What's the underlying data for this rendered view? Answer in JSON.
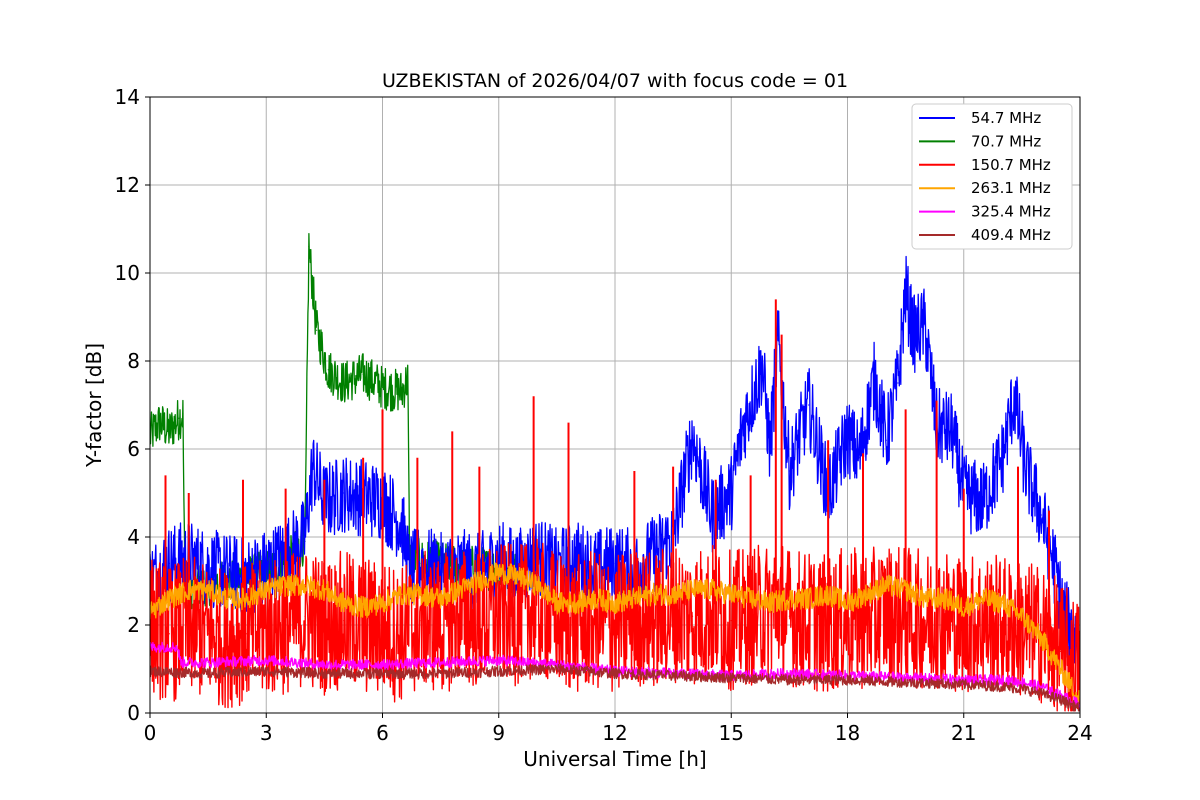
{
  "chart_data": {
    "type": "line",
    "title": "UZBEKISTAN of 2026/04/07 with focus code = 01",
    "xlabel": "Universal Time [h]",
    "ylabel": "Y-factor [dB]",
    "xlim": [
      0,
      24
    ],
    "ylim": [
      0,
      14
    ],
    "xticks": [
      0,
      3,
      6,
      9,
      12,
      15,
      18,
      21,
      24
    ],
    "yticks": [
      0,
      2,
      4,
      6,
      8,
      10,
      12,
      14
    ],
    "grid": true,
    "legend_position": "top-right",
    "series": [
      {
        "name": " 54.7 MHz",
        "color": "#0000ff",
        "x": [
          0,
          0.5,
          1,
          1.5,
          2,
          2.5,
          3,
          3.5,
          4,
          4.2,
          4.5,
          5,
          5.5,
          6,
          6.5,
          6.7,
          7,
          7.5,
          8,
          8.5,
          9,
          9.5,
          10,
          10.5,
          11,
          11.5,
          12,
          12.5,
          13,
          13.5,
          14,
          14.5,
          15,
          15.3,
          15.8,
          16,
          16.2,
          16.5,
          17,
          17.5,
          18,
          18.3,
          18.7,
          19,
          19.3,
          19.5,
          19.7,
          20,
          20.3,
          20.7,
          21,
          21.5,
          22,
          22.3,
          22.6,
          23,
          23.3,
          23.6,
          24
        ],
        "values": [
          3.0,
          3.4,
          3.5,
          3.3,
          3.2,
          3.1,
          3.3,
          3.6,
          4.0,
          5.6,
          4.8,
          5.0,
          4.9,
          4.8,
          4.3,
          3.2,
          3.4,
          3.2,
          3.3,
          3.2,
          3.5,
          3.3,
          3.6,
          3.3,
          3.5,
          3.3,
          3.4,
          3.3,
          3.6,
          4.0,
          6.3,
          4.5,
          5.0,
          6.5,
          7.9,
          6.0,
          8.5,
          5.5,
          7.0,
          5.0,
          6.3,
          5.8,
          7.6,
          6.2,
          7.5,
          9.6,
          8.6,
          8.8,
          6.5,
          6.4,
          5.0,
          4.8,
          5.8,
          7.2,
          5.5,
          4.5,
          3.5,
          2.2,
          1.5
        ]
      },
      {
        "name": " 70.7 MHz",
        "color": "#008000",
        "x": [
          0,
          0.25,
          0.5,
          0.75,
          0.85,
          0.9,
          1.2,
          2,
          3,
          3.5,
          4.0,
          4.1,
          4.3,
          4.6,
          5.0,
          5.5,
          6.0,
          6.5,
          6.65,
          6.7,
          7.5,
          8.5,
          9.5
        ],
        "values": [
          6.3,
          6.6,
          6.4,
          6.7,
          6.8,
          2.8,
          2.9,
          3.0,
          3.2,
          3.4,
          3.9,
          10.6,
          8.7,
          7.8,
          7.5,
          7.7,
          7.4,
          7.3,
          7.6,
          3.5,
          3.4,
          3.3,
          3.2
        ]
      },
      {
        "name": "150.7 MHz",
        "color": "#ff0000",
        "x": [
          0,
          0.5,
          1,
          1.5,
          2,
          2.5,
          3,
          3.5,
          4,
          4.5,
          5,
          5.5,
          6,
          6.5,
          7,
          7.5,
          8,
          8.5,
          9,
          9.5,
          9.9,
          10.5,
          11,
          11.5,
          12,
          12.5,
          13,
          13.5,
          14,
          14.5,
          15,
          15.5,
          16,
          16.15,
          16.5,
          17,
          17.5,
          18,
          18.5,
          19,
          19.5,
          20,
          20.5,
          21,
          21.5,
          22,
          22.5,
          23,
          23.5,
          24
        ],
        "values": [
          2.0,
          1.8,
          2.0,
          1.8,
          1.7,
          1.8,
          1.9,
          2.0,
          2.2,
          2.0,
          2.1,
          2.0,
          1.9,
          1.8,
          2.1,
          2.0,
          2.2,
          2.1,
          2.3,
          2.2,
          2.4,
          2.1,
          2.0,
          2.1,
          2.0,
          2.2,
          2.1,
          2.3,
          2.2,
          2.3,
          2.1,
          2.2,
          2.3,
          2.6,
          2.2,
          2.1,
          2.0,
          2.2,
          2.1,
          2.3,
          2.2,
          2.1,
          2.2,
          2.0,
          2.1,
          2.0,
          1.9,
          1.8,
          1.4,
          1.0
        ],
        "peaks": [
          [
            0.4,
            5.4
          ],
          [
            1.0,
            5.0
          ],
          [
            2.4,
            5.3
          ],
          [
            3.5,
            5.1
          ],
          [
            4.5,
            5.3
          ],
          [
            5.5,
            5.8
          ],
          [
            6.0,
            6.9
          ],
          [
            6.9,
            5.8
          ],
          [
            7.8,
            6.4
          ],
          [
            8.5,
            5.6
          ],
          [
            9.9,
            7.2
          ],
          [
            10.8,
            6.6
          ],
          [
            12.5,
            5.5
          ],
          [
            13.5,
            5.6
          ],
          [
            14.6,
            5.3
          ],
          [
            15.5,
            5.4
          ],
          [
            16.15,
            9.4
          ],
          [
            16.3,
            8.6
          ],
          [
            17.5,
            6.2
          ],
          [
            18.4,
            5.9
          ],
          [
            19.5,
            6.9
          ],
          [
            20.3,
            7.1
          ],
          [
            21.0,
            5.1
          ],
          [
            22.4,
            5.6
          ],
          [
            23.2,
            4.6
          ]
        ]
      },
      {
        "name": "263.1 MHz",
        "color": "#ffa500",
        "x": [
          0,
          0.5,
          1,
          1.5,
          2,
          2.5,
          3,
          3.5,
          4,
          4.5,
          5,
          5.5,
          6,
          6.5,
          7,
          7.5,
          8,
          8.5,
          9,
          9.5,
          10,
          10.5,
          11,
          11.5,
          12,
          12.5,
          13,
          13.5,
          14,
          14.5,
          15,
          15.5,
          16,
          16.5,
          17,
          17.5,
          18,
          18.5,
          19,
          19.5,
          20,
          20.5,
          21,
          21.5,
          22,
          22.5,
          23,
          23.5,
          24
        ],
        "values": [
          2.3,
          2.6,
          2.8,
          2.8,
          2.6,
          2.6,
          2.8,
          2.9,
          2.9,
          2.8,
          2.5,
          2.4,
          2.5,
          2.7,
          2.7,
          2.6,
          2.8,
          3.0,
          3.2,
          3.1,
          2.9,
          2.5,
          2.5,
          2.6,
          2.5,
          2.6,
          2.7,
          2.7,
          2.8,
          2.8,
          2.7,
          2.6,
          2.5,
          2.6,
          2.6,
          2.7,
          2.5,
          2.7,
          2.9,
          2.8,
          2.6,
          2.6,
          2.4,
          2.6,
          2.5,
          2.2,
          1.7,
          1.0,
          0.3
        ]
      },
      {
        "name": "325.4 MHz",
        "color": "#ff00ff",
        "x": [
          0,
          0.7,
          0.8,
          1.5,
          3,
          4.5,
          6,
          7.5,
          9,
          10.5,
          12,
          13.5,
          15,
          16.5,
          18,
          19.5,
          21,
          22,
          22.5,
          23,
          23.5,
          24
        ],
        "values": [
          1.5,
          1.5,
          1.15,
          1.15,
          1.2,
          1.1,
          1.1,
          1.15,
          1.2,
          1.1,
          0.95,
          0.9,
          0.85,
          0.9,
          0.85,
          0.8,
          0.75,
          0.75,
          0.7,
          0.6,
          0.4,
          0.2
        ]
      },
      {
        "name": "409.4 MHz",
        "color": "#a52a2a",
        "x": [
          0,
          1.5,
          3,
          4.5,
          6,
          7.5,
          9,
          10.5,
          12,
          13.5,
          15,
          16.5,
          18,
          19.5,
          21,
          22,
          22.5,
          23,
          23.5,
          24
        ],
        "values": [
          0.95,
          0.9,
          0.95,
          0.9,
          0.9,
          0.9,
          0.95,
          1.0,
          0.9,
          0.85,
          0.8,
          0.75,
          0.75,
          0.7,
          0.65,
          0.6,
          0.55,
          0.45,
          0.3,
          0.1
        ]
      }
    ]
  }
}
